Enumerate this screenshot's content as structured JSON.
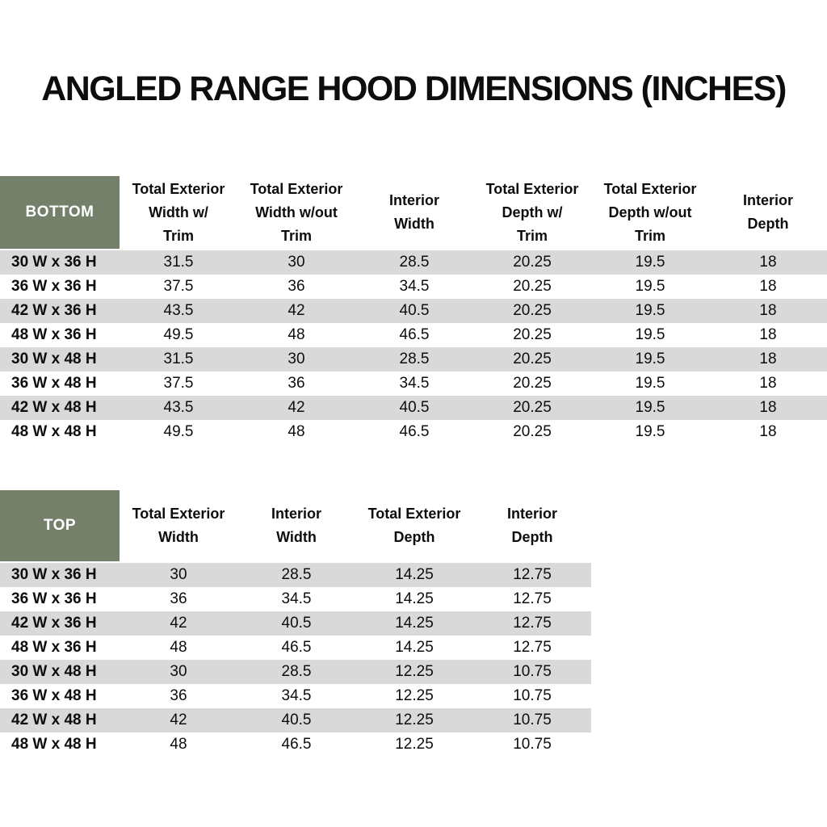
{
  "title": "ANGLED RANGE HOOD DIMENSIONS (INCHES)",
  "colors": {
    "header_green": "#75806a",
    "stripe_gray": "#d9d9d9",
    "text_black": "#0d0d0d"
  },
  "bottom_table": {
    "label": "BOTTOM",
    "columns": [
      "Total Exterior\nWidth w/\nTrim",
      "Total Exterior\nWidth w/out\nTrim",
      "Interior\nWidth",
      "Total Exterior\nDepth w/\nTrim",
      "Total Exterior\nDepth w/out\nTrim",
      "Interior\nDepth"
    ],
    "rows": [
      {
        "size": "30 W x 36 H",
        "values": [
          "31.5",
          "30",
          "28.5",
          "20.25",
          "19.5",
          "18"
        ]
      },
      {
        "size": "36 W x 36 H",
        "values": [
          "37.5",
          "36",
          "34.5",
          "20.25",
          "19.5",
          "18"
        ]
      },
      {
        "size": "42 W x 36 H",
        "values": [
          "43.5",
          "42",
          "40.5",
          "20.25",
          "19.5",
          "18"
        ]
      },
      {
        "size": "48 W x 36 H",
        "values": [
          "49.5",
          "48",
          "46.5",
          "20.25",
          "19.5",
          "18"
        ]
      },
      {
        "size": "30 W x 48 H",
        "values": [
          "31.5",
          "30",
          "28.5",
          "20.25",
          "19.5",
          "18"
        ]
      },
      {
        "size": "36 W x 48 H",
        "values": [
          "37.5",
          "36",
          "34.5",
          "20.25",
          "19.5",
          "18"
        ]
      },
      {
        "size": "42 W x 48 H",
        "values": [
          "43.5",
          "42",
          "40.5",
          "20.25",
          "19.5",
          "18"
        ]
      },
      {
        "size": "48 W x 48 H",
        "values": [
          "49.5",
          "48",
          "46.5",
          "20.25",
          "19.5",
          "18"
        ]
      }
    ]
  },
  "top_table": {
    "label": "TOP",
    "columns": [
      "Total Exterior\nWidth",
      "Interior\nWidth",
      "Total Exterior\nDepth",
      "Interior\nDepth"
    ],
    "rows": [
      {
        "size": "30 W x 36 H",
        "values": [
          "30",
          "28.5",
          "14.25",
          "12.75"
        ]
      },
      {
        "size": "36 W x 36 H",
        "values": [
          "36",
          "34.5",
          "14.25",
          "12.75"
        ]
      },
      {
        "size": "42 W x 36 H",
        "values": [
          "42",
          "40.5",
          "14.25",
          "12.75"
        ]
      },
      {
        "size": "48 W x 36 H",
        "values": [
          "48",
          "46.5",
          "14.25",
          "12.75"
        ]
      },
      {
        "size": "30 W x 48 H",
        "values": [
          "30",
          "28.5",
          "12.25",
          "10.75"
        ]
      },
      {
        "size": "36 W x 48 H",
        "values": [
          "36",
          "34.5",
          "12.25",
          "10.75"
        ]
      },
      {
        "size": "42 W x 48 H",
        "values": [
          "42",
          "40.5",
          "12.25",
          "10.75"
        ]
      },
      {
        "size": "48 W x 48 H",
        "values": [
          "48",
          "46.5",
          "12.25",
          "10.75"
        ]
      }
    ]
  }
}
